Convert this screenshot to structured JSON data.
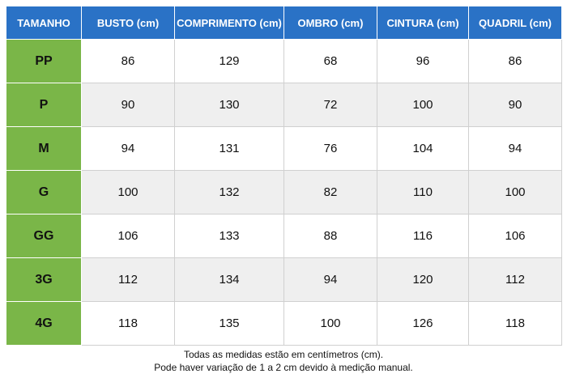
{
  "table": {
    "header": [
      "TAMANHO",
      "BUSTO (cm)",
      "COMPRIMENTO (cm)",
      "OMBRO (cm)",
      "CINTURA (cm)",
      "QUADRIL (cm)"
    ],
    "rows": [
      [
        "PP",
        86,
        129,
        68,
        96,
        86
      ],
      [
        "P",
        90,
        130,
        72,
        100,
        90
      ],
      [
        "M",
        94,
        131,
        76,
        104,
        94
      ],
      [
        "G",
        100,
        132,
        82,
        110,
        100
      ],
      [
        "GG",
        106,
        133,
        88,
        116,
        106
      ],
      [
        "3G",
        112,
        134,
        94,
        120,
        112
      ],
      [
        "4G",
        118,
        135,
        100,
        126,
        118
      ]
    ]
  },
  "footer": [
    "Todas as medidas estão em centímetros (cm).",
    "Pode haver variação de 1 a 2 cm devido à medição manual."
  ]
}
